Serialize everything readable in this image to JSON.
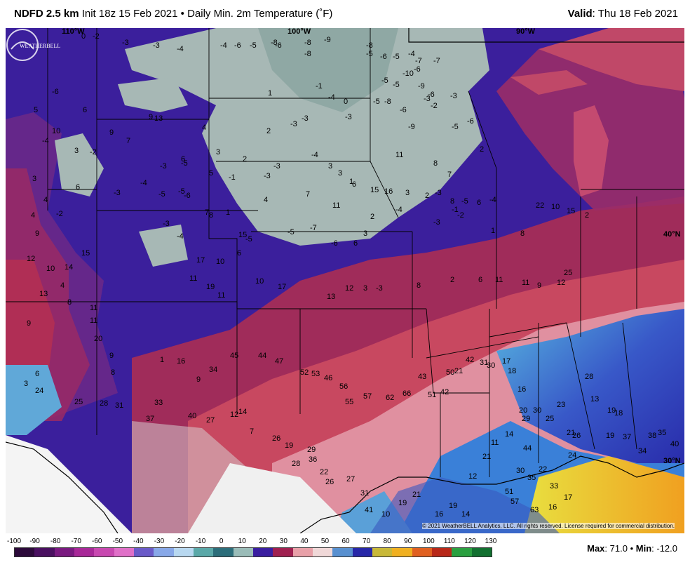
{
  "header": {
    "model": "NDFD 2.5 km",
    "init": "Init 18z 15 Feb 2021",
    "bullet": "•",
    "product": "Daily Min. 2m Temperature (˚F)",
    "valid_label": "Valid",
    "valid_date": ": Thu 18 Feb 2021"
  },
  "map": {
    "lon_labels": [
      "110°W",
      "100°W",
      "90°W"
    ],
    "lat_labels": [
      "40°N",
      "30°N"
    ],
    "values": [
      "0",
      "-2",
      "-3",
      "-3",
      "-4",
      "-4",
      "-6",
      "-5",
      "-8",
      "-6",
      "-8",
      "-8",
      "-9",
      "-8",
      "-5",
      "-6",
      "-5",
      "-4",
      "-7",
      "-6",
      "-7",
      "-5",
      "-5",
      "-10",
      "-9",
      "-3",
      "-6",
      "5",
      "10",
      "6",
      "4",
      "9",
      "3",
      "2",
      "2",
      "1",
      "-3",
      "-1",
      "-3",
      "-4",
      "0",
      "-3",
      "-6",
      "-2",
      "-3",
      "-5",
      "-8",
      "-6",
      "-9",
      "-5",
      "-6",
      "-4",
      "9",
      "7",
      "13",
      "6",
      "3",
      "-2",
      "5",
      "-1",
      "-3",
      "-5",
      "-5",
      "-3",
      "-3",
      "-4",
      "3",
      "3",
      "1",
      "11",
      "8",
      "7",
      "2",
      "3",
      "4",
      "6",
      "-3",
      "-4",
      "-5",
      "-6",
      "7",
      "8",
      "1",
      "4",
      "7",
      "11",
      "6",
      "15",
      "16",
      "3",
      "2",
      "8",
      "6",
      "4",
      "-2",
      "-3",
      "-4",
      "-5",
      "-5",
      "-7",
      "-6",
      "6",
      "3",
      "2",
      "-4",
      "-3",
      "-3",
      "-1",
      "-2",
      "-5",
      "-4",
      "1",
      "8",
      "22",
      "10",
      "15",
      "2",
      "9",
      "10",
      "14",
      "15",
      "10",
      "6",
      "15",
      "17",
      "11",
      "19",
      "11",
      "10",
      "17",
      "13",
      "12",
      "3",
      "-3",
      "8",
      "2",
      "6",
      "11",
      "11",
      "9",
      "12",
      "25",
      "12",
      "4",
      "8",
      "11",
      "11",
      "20",
      "9",
      "8",
      "1",
      "16",
      "9",
      "12",
      "14",
      "7",
      "26",
      "19",
      "28",
      "29",
      "36",
      "22",
      "26",
      "27",
      "31",
      "41",
      "10",
      "13",
      "13",
      "9",
      "3",
      "6",
      "24",
      "25",
      "28",
      "31",
      "33",
      "37",
      "40",
      "27",
      "34",
      "45",
      "44",
      "47",
      "52",
      "53",
      "46",
      "56",
      "55",
      "57",
      "62",
      "66",
      "43",
      "51",
      "42",
      "50",
      "21",
      "42",
      "31",
      "30",
      "17",
      "18",
      "16",
      "20",
      "29",
      "30",
      "25",
      "23",
      "21",
      "26",
      "24",
      "28",
      "13",
      "19",
      "18",
      "19",
      "37",
      "34",
      "38",
      "35",
      "40",
      "44",
      "30",
      "35",
      "22",
      "33",
      "51",
      "57",
      "63",
      "16",
      "17",
      "19",
      "21",
      "16",
      "19",
      "14",
      "12",
      "21",
      "11",
      "14"
    ],
    "max_label": "Max",
    "max_value": ": 71.0",
    "min_label": "Min",
    "min_value": ": -12.0",
    "copyright": "© 2021 WeatherBELL Analytics, LLC. All rights reserved. License required for commercial distribution.",
    "logo_text": "WEATHERBELL"
  },
  "colorbar": {
    "ticks": [
      "-100",
      "-90",
      "-80",
      "-70",
      "-60",
      "-50",
      "-40",
      "-30",
      "-20",
      "-10",
      "0",
      "10",
      "20",
      "30",
      "40",
      "50",
      "60",
      "70",
      "80",
      "90",
      "100",
      "110",
      "120",
      "130"
    ],
    "colors": [
      "#2c0a3a",
      "#4a1060",
      "#7a1a80",
      "#a82898",
      "#c848b0",
      "#e070c8",
      "#6a5ac8",
      "#88a8e8",
      "#b8d8f0",
      "#5aa8a8",
      "#2c6e7a",
      "#9abcb8",
      "#3a1ea0",
      "#a02050",
      "#e8a0a8",
      "#f0d8d8",
      "#5890d0",
      "#2828a8",
      "#c8b838",
      "#f0b020",
      "#e06020",
      "#b82818",
      "#2aa040",
      "#127030"
    ]
  }
}
